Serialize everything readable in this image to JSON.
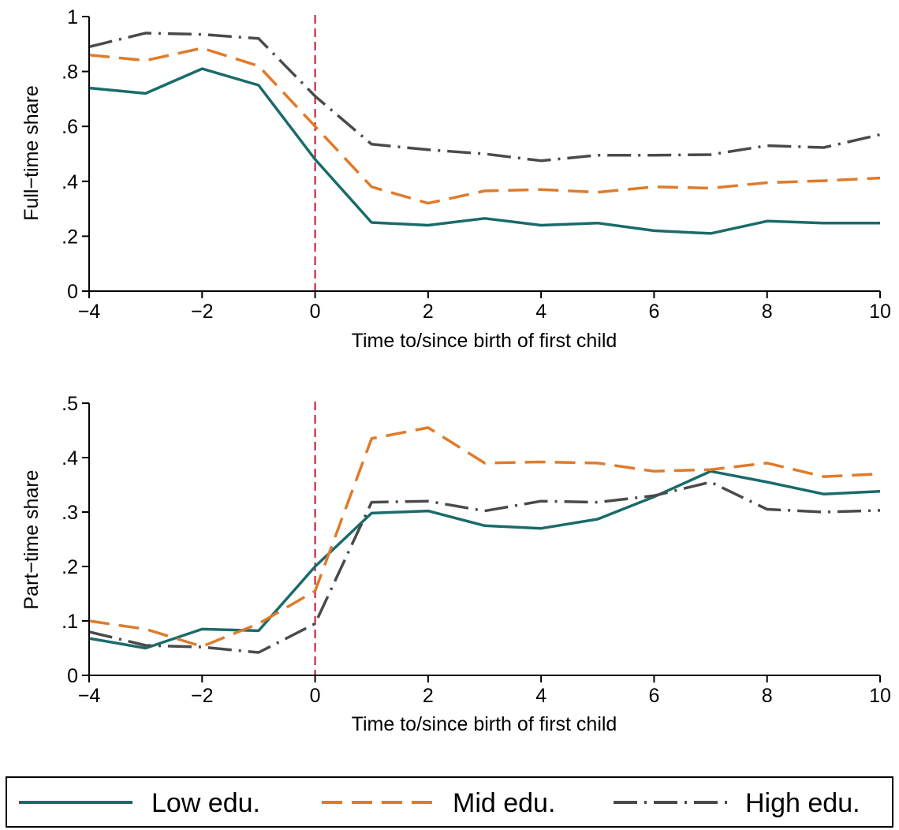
{
  "chart_data": [
    {
      "type": "line",
      "title": "",
      "xlabel": "Time to/since birth of first child",
      "ylabel": "Full−time share",
      "xlim": [
        -4,
        10
      ],
      "ylim": [
        0,
        1
      ],
      "x_ticks": [
        -4,
        -2,
        0,
        2,
        4,
        6,
        8,
        10
      ],
      "x_tick_labels": [
        "−4",
        "−2",
        "0",
        "2",
        "4",
        "6",
        "8",
        "10"
      ],
      "y_ticks": [
        0,
        0.2,
        0.4,
        0.6,
        0.8,
        1
      ],
      "y_tick_labels": [
        "0",
        ".2",
        ".4",
        ".6",
        ".8",
        "1"
      ],
      "reference_line_x": 0,
      "grid": false,
      "x": [
        -4,
        -3,
        -2,
        -1,
        0,
        1,
        2,
        3,
        4,
        5,
        6,
        7,
        8,
        9,
        10
      ],
      "series": [
        {
          "name": "Low edu.",
          "values": [
            0.74,
            0.72,
            0.81,
            0.75,
            0.48,
            0.25,
            0.24,
            0.265,
            0.24,
            0.248,
            0.22,
            0.21,
            0.255,
            0.248,
            0.248
          ]
        },
        {
          "name": "Mid edu.",
          "values": [
            0.86,
            0.84,
            0.885,
            0.82,
            0.6,
            0.38,
            0.32,
            0.365,
            0.37,
            0.36,
            0.38,
            0.375,
            0.395,
            0.402,
            0.412
          ]
        },
        {
          "name": "High edu.",
          "values": [
            0.89,
            0.94,
            0.935,
            0.92,
            0.71,
            0.535,
            0.515,
            0.5,
            0.475,
            0.495,
            0.495,
            0.497,
            0.53,
            0.523,
            0.57
          ]
        }
      ]
    },
    {
      "type": "line",
      "title": "",
      "xlabel": "Time to/since birth of first child",
      "ylabel": "Part−time share",
      "xlim": [
        -4,
        10
      ],
      "ylim": [
        0,
        0.5
      ],
      "x_ticks": [
        -4,
        -2,
        0,
        2,
        4,
        6,
        8,
        10
      ],
      "x_tick_labels": [
        "−4",
        "−2",
        "0",
        "2",
        "4",
        "6",
        "8",
        "10"
      ],
      "y_ticks": [
        0,
        0.1,
        0.2,
        0.3,
        0.4,
        0.5
      ],
      "y_tick_labels": [
        "0",
        ".1",
        ".2",
        ".3",
        ".4",
        ".5"
      ],
      "reference_line_x": 0,
      "grid": false,
      "x": [
        -4,
        -3,
        -2,
        -1,
        0,
        1,
        2,
        3,
        4,
        5,
        6,
        7,
        8,
        9,
        10
      ],
      "series": [
        {
          "name": "Low edu.",
          "values": [
            0.068,
            0.05,
            0.085,
            0.082,
            0.2,
            0.298,
            0.302,
            0.275,
            0.27,
            0.287,
            0.328,
            0.375,
            0.355,
            0.333,
            0.338
          ]
        },
        {
          "name": "Mid edu.",
          "values": [
            0.1,
            0.085,
            0.053,
            0.095,
            0.155,
            0.435,
            0.455,
            0.39,
            0.392,
            0.39,
            0.375,
            0.378,
            0.39,
            0.365,
            0.37
          ]
        },
        {
          "name": "High edu.",
          "values": [
            0.08,
            0.055,
            0.052,
            0.042,
            0.095,
            0.318,
            0.32,
            0.302,
            0.32,
            0.318,
            0.33,
            0.355,
            0.305,
            0.3,
            0.303
          ]
        }
      ]
    }
  ],
  "legend": {
    "placement": "bottom",
    "items": [
      {
        "label": "Low edu.",
        "color": "#1a6b6b",
        "dash": "solid"
      },
      {
        "label": "Mid edu.",
        "color": "#e07b2a",
        "dash": "dash"
      },
      {
        "label": "High edu.",
        "color": "#4a4a4a",
        "dash": "dashdot"
      }
    ]
  },
  "colors": {
    "low": "#1a6b6b",
    "mid": "#e07b2a",
    "high": "#4a4a4a",
    "reference_line": "#c8102e",
    "axis": "#000000"
  }
}
